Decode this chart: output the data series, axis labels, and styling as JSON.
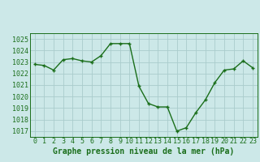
{
  "x": [
    0,
    1,
    2,
    3,
    4,
    5,
    6,
    7,
    8,
    9,
    10,
    11,
    12,
    13,
    14,
    15,
    16,
    17,
    18,
    19,
    20,
    21,
    22,
    23
  ],
  "y": [
    1022.8,
    1022.7,
    1022.3,
    1023.2,
    1023.3,
    1023.1,
    1023.0,
    1023.55,
    1024.6,
    1024.6,
    1024.6,
    1020.9,
    1019.4,
    1019.1,
    1019.1,
    1017.0,
    1017.3,
    1018.6,
    1019.7,
    1021.2,
    1022.3,
    1022.4,
    1023.1,
    1022.5
  ],
  "line_color": "#1a6e1a",
  "marker_color": "#1a6e1a",
  "bg_color": "#cce8e8",
  "grid_color": "#aacccc",
  "title": "Graphe pression niveau de la mer (hPa)",
  "ylim_min": 1016.5,
  "ylim_max": 1025.5,
  "yticks": [
    1017,
    1018,
    1019,
    1020,
    1021,
    1022,
    1023,
    1024,
    1025
  ],
  "xticks": [
    0,
    1,
    2,
    3,
    4,
    5,
    6,
    7,
    8,
    9,
    10,
    11,
    12,
    13,
    14,
    15,
    16,
    17,
    18,
    19,
    20,
    21,
    22,
    23
  ],
  "title_color": "#1a6e1a",
  "title_fontsize": 7.0,
  "tick_fontsize": 6.0,
  "marker_size": 2.5,
  "line_width": 1.0
}
